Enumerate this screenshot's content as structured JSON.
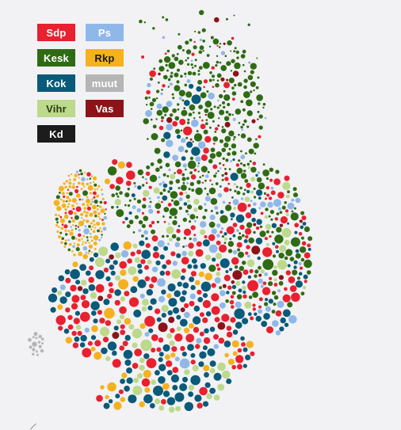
{
  "legend": {
    "parties": [
      {
        "key": "sdp",
        "label": "Sdp",
        "color": "#e8202f",
        "text_color": "#ffffff"
      },
      {
        "key": "ps",
        "label": "Ps",
        "color": "#8fb8e8",
        "text_color": "#ffffff"
      },
      {
        "key": "kesk",
        "label": "Kesk",
        "color": "#2f6b14",
        "text_color": "#ffffff"
      },
      {
        "key": "rkp",
        "label": "Rkp",
        "color": "#f5b21e",
        "text_color": "#1a1a1a"
      },
      {
        "key": "kok",
        "label": "Kok",
        "color": "#0a5a7a",
        "text_color": "#ffffff"
      },
      {
        "key": "muut",
        "label": "muut",
        "color": "#b5b5b5",
        "text_color": "#ffffff"
      },
      {
        "key": "vihr",
        "label": "Vihr",
        "color": "#bcd98c",
        "text_color": "#2b3a12"
      },
      {
        "key": "vas",
        "label": "Vas",
        "color": "#8c1418",
        "text_color": "#ffffff"
      },
      {
        "key": "kd",
        "label": "Kd",
        "color": "#1c1c1c",
        "text_color": "#ffffff"
      }
    ]
  },
  "map": {
    "background": "#f2f2f4",
    "dominant_party_share": {
      "north_region": {
        "kesk": 0.78,
        "vas": 0.06,
        "ps": 0.08,
        "sdp": 0.08
      },
      "central_region": {
        "kesk": 0.55,
        "sdp": 0.15,
        "ps": 0.15,
        "kok": 0.1,
        "vihr": 0.05
      },
      "west_coast_region": {
        "rkp": 0.62,
        "kesk": 0.2,
        "sdp": 0.1,
        "ps": 0.08
      },
      "east_region": {
        "sdp": 0.32,
        "kesk": 0.28,
        "kok": 0.18,
        "ps": 0.1,
        "vihr": 0.06,
        "vas": 0.06
      },
      "south_region": {
        "sdp": 0.36,
        "kok": 0.34,
        "vihr": 0.1,
        "ps": 0.1,
        "rkp": 0.06,
        "vas": 0.04
      },
      "capital_region": {
        "kok": 0.46,
        "vihr": 0.32,
        "sdp": 0.14,
        "rkp": 0.08
      },
      "aland_region": {
        "muut": 1.0
      }
    }
  }
}
